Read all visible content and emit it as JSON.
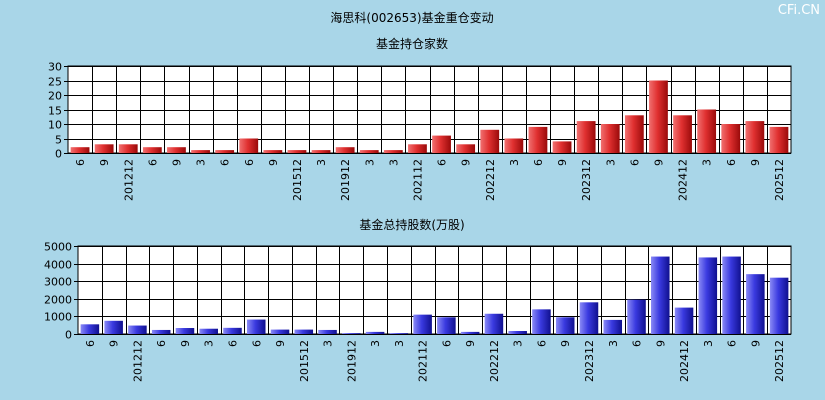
{
  "title": "海思科(002653)基金重仓变动",
  "watermark": "CFi.CN",
  "colors": {
    "background": "#a9d6e8",
    "holders_bar_light": "#f07070",
    "holders_bar_dark": "#b01010",
    "shares_bar_light": "#8080f0",
    "shares_bar_dark": "#1010a0"
  },
  "chart_data": [
    {
      "type": "bar",
      "title": "基金持仓家数",
      "categories": [
        "6",
        "9",
        "201212",
        "6",
        "9",
        "3",
        "6",
        "6",
        "9",
        "201512",
        "3",
        "201912",
        "3",
        "3",
        "202112",
        "6",
        "9",
        "202212",
        "3",
        "6",
        "9",
        "202312",
        "3",
        "6",
        "9",
        "202412",
        "3",
        "6",
        "9",
        "202512"
      ],
      "x_tick_labels": [
        "6",
        "9",
        "201212",
        "6",
        "9",
        "3",
        "6",
        "6",
        "9",
        "201512",
        "3",
        "201912",
        "3",
        "3",
        "202112",
        "6",
        "9",
        "202212",
        "3",
        "6",
        "9",
        "202312",
        "3",
        "6",
        "9",
        "202412",
        "3",
        "6",
        "9",
        "202512"
      ],
      "values": [
        2,
        3,
        3,
        2,
        2,
        1,
        1,
        5,
        1,
        1,
        1,
        2,
        1,
        1,
        3,
        6,
        3,
        8,
        5,
        9,
        4,
        11,
        10,
        13,
        25,
        13,
        15,
        10,
        11,
        9
      ],
      "ylim": [
        0,
        30
      ],
      "yticks": [
        0,
        5,
        10,
        15,
        20,
        25,
        30
      ],
      "grid": true
    },
    {
      "type": "bar",
      "title": "基金总持股数(万股)",
      "categories": [
        "6",
        "9",
        "201212",
        "6",
        "9",
        "3",
        "6",
        "6",
        "9",
        "201512",
        "3",
        "201912",
        "3",
        "3",
        "202112",
        "6",
        "9",
        "202212",
        "3",
        "6",
        "9",
        "202312",
        "3",
        "6",
        "9",
        "202412",
        "3",
        "6",
        "9",
        "202512"
      ],
      "x_tick_labels": [
        "6",
        "9",
        "201212",
        "6",
        "9",
        "3",
        "6",
        "6",
        "9",
        "201512",
        "3",
        "201912",
        "3",
        "3",
        "202112",
        "6",
        "9",
        "202212",
        "3",
        "6",
        "9",
        "202312",
        "3",
        "6",
        "9",
        "202412",
        "3",
        "6",
        "9",
        "202512"
      ],
      "values": [
        550,
        750,
        480,
        230,
        340,
        300,
        350,
        820,
        250,
        250,
        230,
        50,
        120,
        50,
        1100,
        950,
        120,
        1150,
        170,
        1400,
        950,
        1800,
        800,
        1950,
        4400,
        1500,
        4350,
        4400,
        3400,
        3200
      ],
      "ylim": [
        0,
        5000
      ],
      "yticks": [
        0,
        1000,
        2000,
        3000,
        4000,
        5000
      ],
      "grid": true
    }
  ]
}
